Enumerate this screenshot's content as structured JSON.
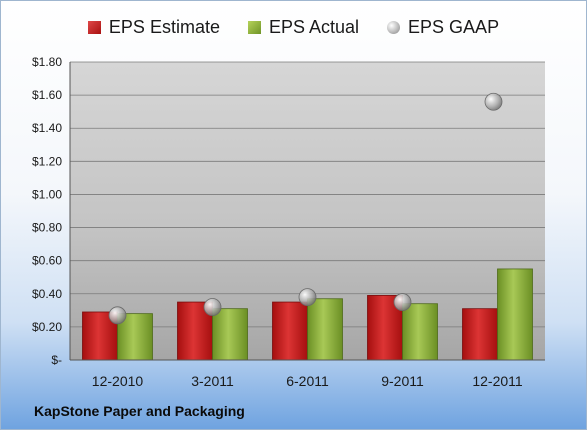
{
  "chart_data": {
    "type": "bar",
    "categories": [
      "12-2010",
      "3-2011",
      "6-2011",
      "9-2011",
      "12-2011"
    ],
    "series": [
      {
        "name": "EPS Estimate",
        "values": [
          0.29,
          0.35,
          0.35,
          0.39,
          0.31
        ],
        "color": "#c41e1e"
      },
      {
        "name": "EPS Actual",
        "values": [
          0.28,
          0.31,
          0.37,
          0.34,
          0.55
        ],
        "color": "#8db33a"
      },
      {
        "name": "EPS GAAP",
        "values": [
          0.27,
          0.32,
          0.38,
          0.35,
          1.56
        ],
        "color": "#a9a9a9",
        "marker": "circle"
      }
    ],
    "ylim": [
      0,
      1.8
    ],
    "yticks": [
      0,
      0.2,
      0.4,
      0.6,
      0.8,
      1.0,
      1.2,
      1.4,
      1.6,
      1.8
    ],
    "ytick_labels": [
      "$-",
      "$0.20",
      "$0.40",
      "$0.60",
      "$0.80",
      "$1.00",
      "$1.20",
      "$1.40",
      "$1.60",
      "$1.80"
    ],
    "grid": true,
    "legend_position": "top"
  },
  "footer": {
    "title": "KapStone Paper and Packaging"
  }
}
